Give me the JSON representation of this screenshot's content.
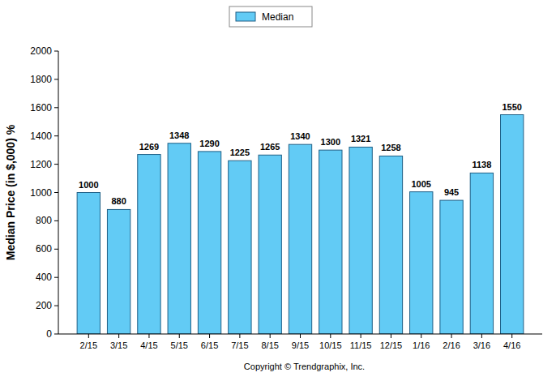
{
  "chart_data": {
    "type": "bar",
    "y_label": "Median Price (in $,000) %",
    "categories": [
      "2/15",
      "3/15",
      "4/15",
      "5/15",
      "6/15",
      "7/15",
      "8/15",
      "9/15",
      "10/15",
      "11/15",
      "12/15",
      "1/16",
      "2/16",
      "3/16",
      "4/16"
    ],
    "series": [
      {
        "name": "Median",
        "color": "#62cbf5",
        "values": [
          1000,
          880,
          1269,
          1348,
          1290,
          1225,
          1265,
          1340,
          1300,
          1321,
          1258,
          1005,
          945,
          1138,
          1550
        ]
      }
    ],
    "ylim": [
      0,
      2000
    ],
    "yticks": [
      0,
      200,
      400,
      600,
      800,
      1000,
      1200,
      1400,
      1600,
      1800,
      2000
    ],
    "grid": false,
    "legend": "top",
    "data_labels": true,
    "annotations": [
      "Copyright © Trendgraphix, Inc."
    ]
  }
}
